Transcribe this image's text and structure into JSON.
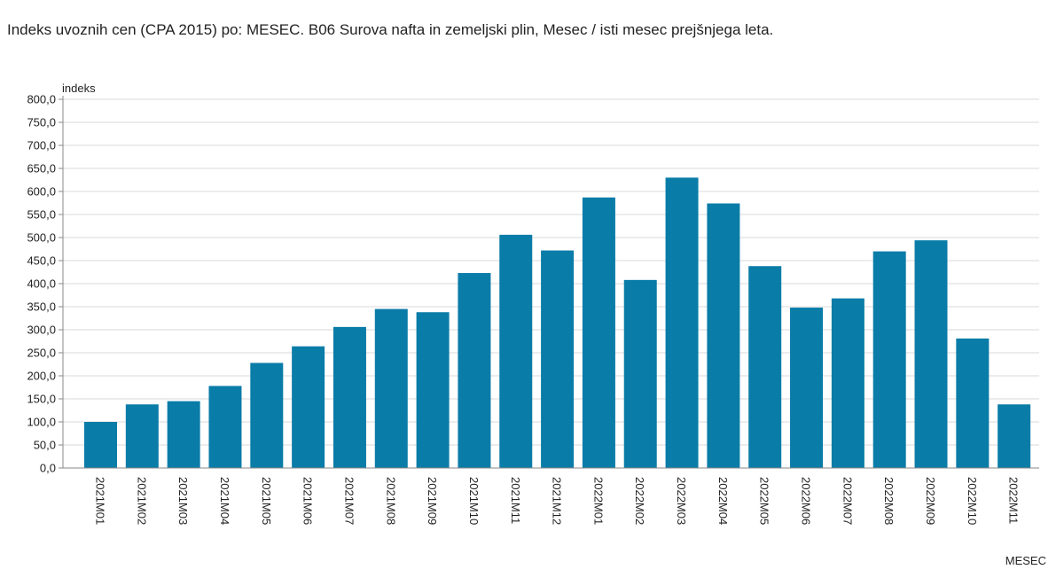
{
  "chart_data": {
    "type": "bar",
    "title": "Indeks uvoznih cen (CPA 2015) po: MESEC. B06 Surova nafta in zemeljski plin, Mesec / isti mesec prejšnjega leta.",
    "ylabel": "indeks",
    "xlabel": "MESEC",
    "ylim": [
      0,
      800
    ],
    "ytick_step": 50,
    "grid": true,
    "bar_color": "#0a7ca8",
    "categories": [
      "2021M01",
      "2021M02",
      "2021M03",
      "2021M04",
      "2021M05",
      "2021M06",
      "2021M07",
      "2021M08",
      "2021M09",
      "2021M10",
      "2021M11",
      "2021M12",
      "2022M01",
      "2022M02",
      "2022M03",
      "2022M04",
      "2022M05",
      "2022M06",
      "2022M07",
      "2022M08",
      "2022M09",
      "2022M10",
      "2022M11"
    ],
    "values": [
      100,
      138,
      145,
      178,
      228,
      264,
      306,
      345,
      338,
      423,
      506,
      472,
      587,
      408,
      630,
      574,
      438,
      348,
      368,
      470,
      494,
      281,
      138
    ]
  }
}
